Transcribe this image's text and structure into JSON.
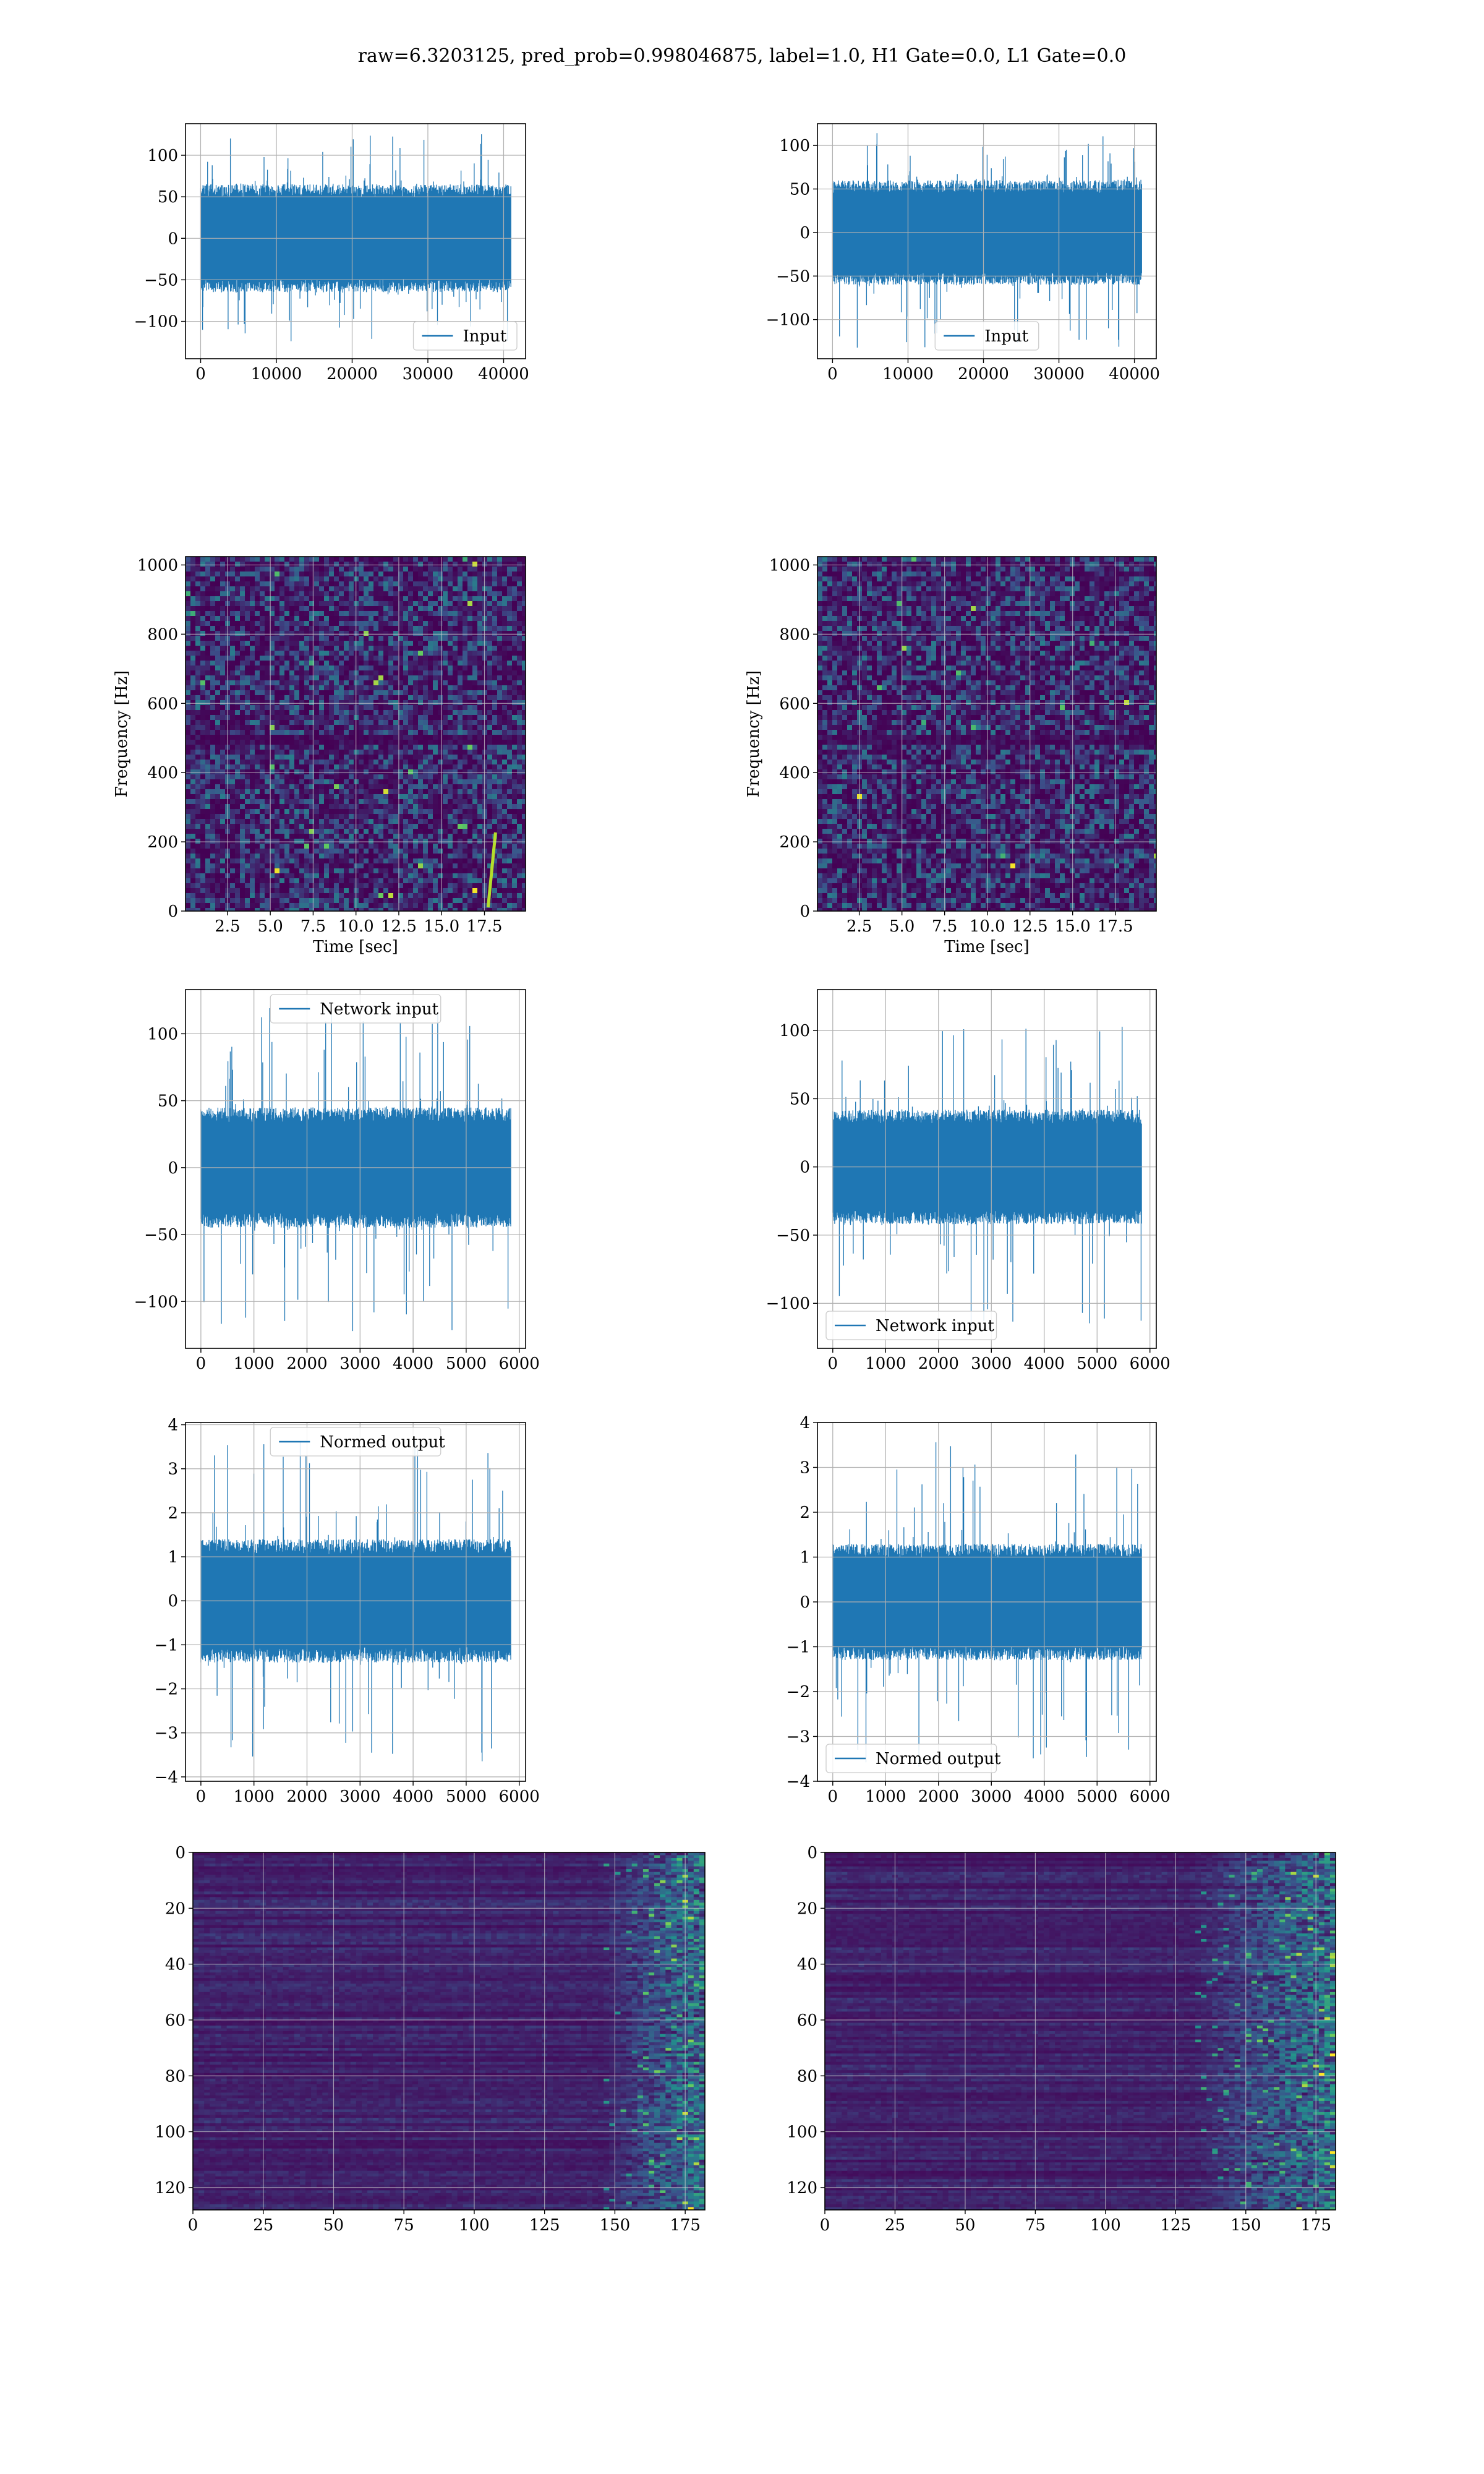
{
  "figure_title": "raw=6.3203125, pred_prob=0.998046875, label=1.0, H1 Gate=0.0, L1 Gate=0.0",
  "colors": {
    "line": "#1f77b4",
    "grid": "#b0b0b0",
    "viridis_dark": "#440154",
    "viridis_mid": "#3b528b",
    "viridis_teal": "#21918c",
    "viridis_green": "#5ec962",
    "viridis_yellow": "#fde725"
  },
  "chart_data": [
    {
      "id": "p00",
      "type": "line",
      "title": "",
      "xlabel": "",
      "ylabel": "",
      "xlim": [
        -2000,
        42900
      ],
      "ylim": [
        -145,
        138
      ],
      "xticks": [
        0,
        10000,
        20000,
        30000,
        40000
      ],
      "yticks": [
        -100,
        -50,
        0,
        50,
        100
      ],
      "legend": "Input",
      "legend_loc": "lower-right",
      "series": [
        {
          "name": "Input",
          "x_range": [
            0,
            40960
          ],
          "core": 65,
          "spike_max": 126,
          "spike_min": -125
        }
      ]
    },
    {
      "id": "p01",
      "type": "line",
      "title": "",
      "xlabel": "",
      "ylabel": "",
      "xlim": [
        -2000,
        42900
      ],
      "ylim": [
        -145,
        125
      ],
      "xticks": [
        0,
        10000,
        20000,
        30000,
        40000
      ],
      "yticks": [
        -100,
        -50,
        0,
        50,
        100
      ],
      "legend": "Input",
      "legend_loc": "lower-center",
      "series": [
        {
          "name": "Input",
          "x_range": [
            0,
            40960
          ],
          "core": 60,
          "spike_max": 115,
          "spike_min": -133
        }
      ]
    },
    {
      "id": "p10",
      "type": "heatmap",
      "title": "",
      "xlabel": "Time [sec]",
      "ylabel": "Frequency [Hz]",
      "xlim": [
        0.05,
        19.9
      ],
      "ylim": [
        0,
        1024
      ],
      "xticks": [
        2.5,
        5.0,
        7.5,
        10.0,
        12.5,
        15.0,
        17.5
      ],
      "yticks": [
        0,
        200,
        400,
        600,
        800,
        1000
      ],
      "colormap": "viridis",
      "features": [
        {
          "t": 18.0,
          "f": 120,
          "note": "chirp"
        }
      ]
    },
    {
      "id": "p11",
      "type": "heatmap",
      "title": "",
      "xlabel": "Time [sec]",
      "ylabel": "Frequency [Hz]",
      "xlim": [
        0.05,
        19.9
      ],
      "ylim": [
        0,
        1024
      ],
      "xticks": [
        2.5,
        5.0,
        7.5,
        10.0,
        12.5,
        15.0,
        17.5
      ],
      "yticks": [
        0,
        200,
        400,
        600,
        800,
        1000
      ],
      "colormap": "viridis"
    },
    {
      "id": "p20",
      "type": "line",
      "title": "",
      "xlabel": "",
      "ylabel": "",
      "xlim": [
        -290,
        6120
      ],
      "ylim": [
        -135,
        133
      ],
      "xticks": [
        0,
        1000,
        2000,
        3000,
        4000,
        5000,
        6000
      ],
      "yticks": [
        -100,
        -50,
        0,
        50,
        100
      ],
      "legend": "Network input",
      "legend_loc": "upper-center",
      "series": [
        {
          "name": "Network input",
          "x_range": [
            0,
            5840
          ],
          "core": 45,
          "spike_max": 120,
          "spike_min": -123
        }
      ]
    },
    {
      "id": "p21",
      "type": "line",
      "title": "",
      "xlabel": "",
      "ylabel": "",
      "xlim": [
        -290,
        6120
      ],
      "ylim": [
        -133,
        130
      ],
      "xticks": [
        0,
        1000,
        2000,
        3000,
        4000,
        5000,
        6000
      ],
      "yticks": [
        -100,
        -50,
        0,
        50,
        100
      ],
      "legend": "Network input",
      "legend_loc": "lower-left",
      "series": [
        {
          "name": "Network input",
          "x_range": [
            0,
            5840
          ],
          "core": 42,
          "spike_max": 105,
          "spike_min": -123
        }
      ]
    },
    {
      "id": "p30",
      "type": "line",
      "title": "",
      "xlabel": "",
      "ylabel": "",
      "xlim": [
        -290,
        6120
      ],
      "ylim": [
        -4.1,
        4.05
      ],
      "xticks": [
        0,
        1000,
        2000,
        3000,
        4000,
        5000,
        6000
      ],
      "yticks": [
        -4,
        -3,
        -2,
        -1,
        0,
        1,
        2,
        3,
        4
      ],
      "legend": "Normed output",
      "legend_loc": "upper-center",
      "series": [
        {
          "name": "Normed output",
          "x_range": [
            0,
            5840
          ],
          "core": 1.4,
          "spike_max": 3.7,
          "spike_min": -3.7
        }
      ]
    },
    {
      "id": "p31",
      "type": "line",
      "title": "",
      "xlabel": "",
      "ylabel": "",
      "xlim": [
        -290,
        6120
      ],
      "ylim": [
        -4.0,
        4.0
      ],
      "xticks": [
        0,
        1000,
        2000,
        3000,
        4000,
        5000,
        6000
      ],
      "yticks": [
        -4,
        -3,
        -2,
        -1,
        0,
        1,
        2,
        3,
        4
      ],
      "legend": "Normed output",
      "legend_loc": "lower-left",
      "series": [
        {
          "name": "Normed output",
          "x_range": [
            0,
            5840
          ],
          "core": 1.3,
          "spike_max": 3.6,
          "spike_min": -3.7
        }
      ]
    },
    {
      "id": "p40",
      "type": "heatmap",
      "title": "",
      "xlabel": "",
      "ylabel": "",
      "xlim": [
        0,
        182
      ],
      "ylim": [
        128,
        0
      ],
      "xticks": [
        0,
        25,
        50,
        75,
        100,
        125,
        150,
        175
      ],
      "yticks": [
        0,
        20,
        40,
        60,
        80,
        100,
        120
      ],
      "colormap": "viridis",
      "bright_from_x": 145
    },
    {
      "id": "p41",
      "type": "heatmap",
      "title": "",
      "xlabel": "",
      "ylabel": "",
      "xlim": [
        0,
        182
      ],
      "ylim": [
        128,
        0
      ],
      "xticks": [
        0,
        25,
        50,
        75,
        100,
        125,
        150,
        175
      ],
      "yticks": [
        0,
        20,
        40,
        60,
        80,
        100,
        120
      ],
      "colormap": "viridis",
      "bright_from_x": 130
    }
  ]
}
